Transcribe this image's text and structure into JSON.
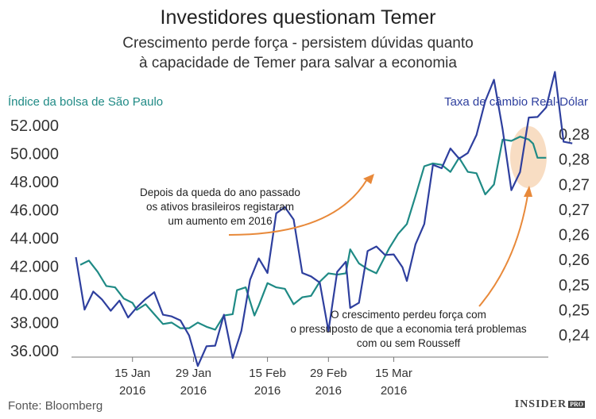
{
  "title": "Investidores questionam Temer",
  "subtitle": "Crescimento perde força - persistem dúvidas quanto\nà capacidade de Temer para salvar a economia",
  "source": "Fonte: Bloomberg",
  "brand": {
    "name": "INSIDER",
    "tag": "PRO"
  },
  "colors": {
    "ibovespa": "#1f8a85",
    "fx": "#2e3f9e",
    "arrow": "#e8893a",
    "highlight": "#f7d7b8"
  },
  "chart_data": {
    "type": "line",
    "left_axis": {
      "label": "Índice da bolsa de São Paulo",
      "range": [
        36000,
        52000
      ],
      "ticks": [
        "36.000",
        "38.000",
        "40.000",
        "42.000",
        "44.000",
        "46.000",
        "48.000",
        "50.000",
        "52.000"
      ]
    },
    "right_axis": {
      "label": "Taxa de câmbio Real-Dólar",
      "range": [
        0.24,
        0.28
      ],
      "ticks": [
        "0,24",
        "0,25",
        "0,25",
        "0,26",
        "0,26",
        "0,27",
        "0,27",
        "0,28",
        "0,28"
      ]
    },
    "x_ticks": [
      {
        "day": 14,
        "label1": "15 Jan",
        "label2": "2016"
      },
      {
        "day": 28,
        "label1": "29 Jan",
        "label2": "2016"
      },
      {
        "day": 45,
        "label1": "15 Feb",
        "label2": "2016"
      },
      {
        "day": 59,
        "label1": "29 Feb",
        "label2": "2016"
      },
      {
        "day": 74,
        "label1": "15 Mar",
        "label2": "2016"
      }
    ],
    "grid": false,
    "series": [
      {
        "name": "Índice da bolsa de São Paulo",
        "axis": "left",
        "points": [
          [
            2,
            42100
          ],
          [
            4,
            42400
          ],
          [
            6,
            41600
          ],
          [
            8,
            40600
          ],
          [
            10,
            40500
          ],
          [
            12,
            39700
          ],
          [
            14,
            39400
          ],
          [
            15,
            38900
          ],
          [
            17,
            39300
          ],
          [
            19,
            38600
          ],
          [
            21,
            37900
          ],
          [
            23,
            38000
          ],
          [
            25,
            37600
          ],
          [
            27,
            37600
          ],
          [
            29,
            38000
          ],
          [
            31,
            37700
          ],
          [
            33,
            37500
          ],
          [
            35,
            38500
          ],
          [
            37,
            38600
          ],
          [
            38,
            40300
          ],
          [
            40,
            40500
          ],
          [
            42,
            38500
          ],
          [
            43,
            39200
          ],
          [
            45,
            40800
          ],
          [
            47,
            40500
          ],
          [
            49,
            40400
          ],
          [
            51,
            39300
          ],
          [
            53,
            39800
          ],
          [
            55,
            39900
          ],
          [
            57,
            40900
          ],
          [
            59,
            41500
          ],
          [
            61,
            41400
          ],
          [
            63,
            41500
          ],
          [
            64,
            43200
          ],
          [
            66,
            42200
          ],
          [
            68,
            41800
          ],
          [
            70,
            41500
          ],
          [
            73,
            43300
          ],
          [
            75,
            44300
          ],
          [
            77,
            45000
          ],
          [
            79,
            47000
          ],
          [
            81,
            49100
          ],
          [
            83,
            49300
          ],
          [
            85,
            49200
          ],
          [
            87,
            48700
          ],
          [
            89,
            49700
          ],
          [
            91,
            48700
          ],
          [
            93,
            48600
          ],
          [
            95,
            47100
          ],
          [
            97,
            47800
          ],
          [
            99,
            51000
          ],
          [
            101,
            50900
          ],
          [
            103,
            51200
          ],
          [
            105,
            51000
          ],
          [
            106,
            50700
          ],
          [
            107,
            49700
          ],
          [
            109,
            49700
          ]
        ]
      },
      {
        "name": "Taxa de câmbio Real-Dólar",
        "axis": "right",
        "points": [
          [
            1,
            0.2566
          ],
          [
            3,
            0.2473
          ],
          [
            5,
            0.2505
          ],
          [
            7,
            0.2491
          ],
          [
            9,
            0.2471
          ],
          [
            11,
            0.2489
          ],
          [
            13,
            0.2459
          ],
          [
            15,
            0.2477
          ],
          [
            17,
            0.2492
          ],
          [
            19,
            0.2504
          ],
          [
            21,
            0.2464
          ],
          [
            23,
            0.2461
          ],
          [
            25,
            0.2454
          ],
          [
            27,
            0.2427
          ],
          [
            29,
            0.2373
          ],
          [
            31,
            0.2408
          ],
          [
            33,
            0.2409
          ],
          [
            35,
            0.2464
          ],
          [
            37,
            0.2387
          ],
          [
            39,
            0.2435
          ],
          [
            41,
            0.2526
          ],
          [
            43,
            0.2564
          ],
          [
            45,
            0.2538
          ],
          [
            47,
            0.2644
          ],
          [
            49,
            0.2655
          ],
          [
            51,
            0.2633
          ],
          [
            53,
            0.2538
          ],
          [
            55,
            0.2532
          ],
          [
            57,
            0.2521
          ],
          [
            59,
            0.2435
          ],
          [
            61,
            0.254
          ],
          [
            63,
            0.2558
          ],
          [
            64,
            0.2476
          ],
          [
            66,
            0.2485
          ],
          [
            68,
            0.2577
          ],
          [
            70,
            0.2585
          ],
          [
            72,
            0.257
          ],
          [
            74,
            0.2571
          ],
          [
            76,
            0.2548
          ],
          [
            77,
            0.2524
          ],
          [
            79,
            0.2589
          ],
          [
            81,
            0.2625
          ],
          [
            83,
            0.273
          ],
          [
            85,
            0.2724
          ],
          [
            87,
            0.2759
          ],
          [
            89,
            0.2741
          ],
          [
            91,
            0.2751
          ],
          [
            93,
            0.2783
          ],
          [
            95,
            0.2843
          ],
          [
            97,
            0.2881
          ],
          [
            99,
            0.2793
          ],
          [
            101,
            0.2685
          ],
          [
            103,
            0.2717
          ],
          [
            105,
            0.2814
          ],
          [
            107,
            0.2815
          ],
          [
            109,
            0.2832
          ],
          [
            111,
            0.2895
          ],
          [
            113,
            0.2771
          ],
          [
            115,
            0.2768
          ]
        ]
      }
    ],
    "annotations": [
      {
        "text": "Depois da queda do ano passado\nos ativos brasileiros registaram\num aumento em 2016"
      },
      {
        "text": "O crescimento perdeu força com\no pressuposto de que a economia terá problemas\ncom ou sem Rousseff"
      }
    ]
  }
}
